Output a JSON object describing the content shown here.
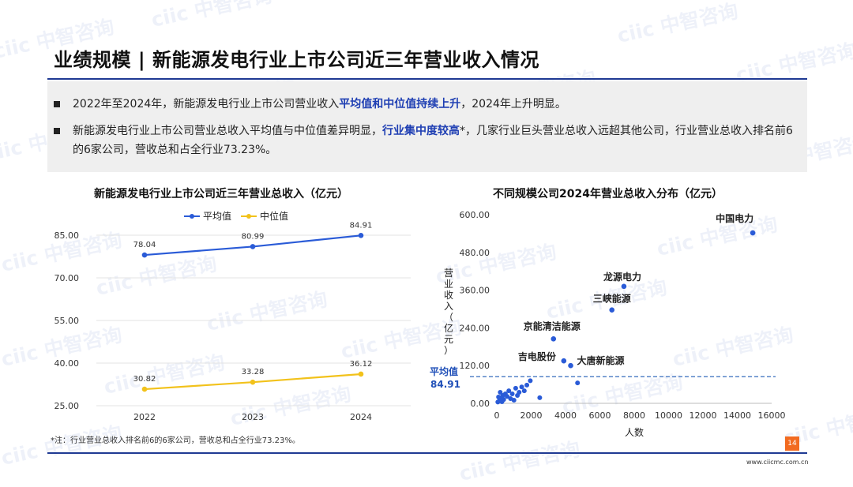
{
  "title": "业绩规模 | 新能源发电行业上市公司近三年营业收入情况",
  "summary": {
    "b1_pre": "2022年至2024年，新能源发电行业上市公司营业收入",
    "b1_hl": "平均值和中位值持续上升",
    "b1_post": "，2024年上升明显。",
    "b2_pre": "新能源发电行业上市公司营业总收入平均值与中位值差异明显，",
    "b2_hl": "行业集中度较高",
    "b2_post": "*，几家行业巨头营业总收入远超其他公司，行业营业总收入排名前6的6家公司，营收总和占全行业73.23%。"
  },
  "footnote": "*注：行业营业总收入排名前6的6家公司，营收总和占全行业73.23%。",
  "page_number": "14",
  "website": "www.ciicmc.com.cn",
  "watermark": "ciic 中智咨询",
  "colors": {
    "navy": "#1f3a93",
    "mean_line": "#2a5bd7",
    "median_line": "#f2c21b",
    "scatter": "#2a5bd7",
    "accent_orange": "#f26b21"
  },
  "chart_data": [
    {
      "type": "line",
      "title": "新能源发电行业上市公司近三年营业总收入（亿元）",
      "categories": [
        "2022",
        "2023",
        "2024"
      ],
      "series": [
        {
          "name": "平均值",
          "values": [
            78.04,
            80.99,
            84.91
          ],
          "labels": [
            "78.04",
            "80.99",
            "84.91"
          ]
        },
        {
          "name": "中位值",
          "values": [
            30.82,
            33.28,
            36.12
          ],
          "labels": [
            "30.82",
            "33.28",
            "36.12"
          ]
        }
      ],
      "yticks": [
        "85.00",
        "70.00",
        "55.00",
        "40.00",
        "25.00"
      ],
      "ylim": [
        25,
        85
      ],
      "grid": true,
      "legend": "top"
    },
    {
      "type": "scatter",
      "title": "不同规模公司2024年营业总收入分布（亿元）",
      "xlabel": "人数",
      "ylabel": "营业收入（亿元）",
      "xlim": [
        0,
        16000
      ],
      "ylim": [
        0,
        600
      ],
      "xticks": [
        "0",
        "2000",
        "4000",
        "6000",
        "8000",
        "10000",
        "12000",
        "14000",
        "16000"
      ],
      "yticks": [
        "600.00",
        "480.00",
        "360.00",
        "240.00",
        "120.00",
        "0.00"
      ],
      "reference_line": {
        "label": "平均值",
        "value": 84.91,
        "value_label": "84.91"
      },
      "labeled_points": [
        {
          "name": "中国电力",
          "x": 14900,
          "y": 542
        },
        {
          "name": "龙源电力",
          "x": 7400,
          "y": 372
        },
        {
          "name": "三峡能源",
          "x": 6700,
          "y": 297
        },
        {
          "name": "京能清洁能源",
          "x": 3300,
          "y": 205
        },
        {
          "name": "吉电股份",
          "x": 3900,
          "y": 135
        },
        {
          "name": "大唐新能源",
          "x": 4300,
          "y": 120
        }
      ],
      "points": [
        {
          "x": 4700,
          "y": 65
        },
        {
          "x": 2500,
          "y": 18
        },
        {
          "x": 1950,
          "y": 72
        },
        {
          "x": 1750,
          "y": 58
        },
        {
          "x": 1600,
          "y": 40
        },
        {
          "x": 1450,
          "y": 52
        },
        {
          "x": 1300,
          "y": 35
        },
        {
          "x": 1200,
          "y": 25
        },
        {
          "x": 1100,
          "y": 48
        },
        {
          "x": 1000,
          "y": 10
        },
        {
          "x": 900,
          "y": 30
        },
        {
          "x": 800,
          "y": 15
        },
        {
          "x": 700,
          "y": 40
        },
        {
          "x": 600,
          "y": 22
        },
        {
          "x": 500,
          "y": 30
        },
        {
          "x": 400,
          "y": 12
        },
        {
          "x": 350,
          "y": 25
        },
        {
          "x": 300,
          "y": 5
        },
        {
          "x": 250,
          "y": 18
        },
        {
          "x": 200,
          "y": 35
        },
        {
          "x": 150,
          "y": 8
        },
        {
          "x": 100,
          "y": 20
        },
        {
          "x": 60,
          "y": 4
        }
      ]
    }
  ]
}
